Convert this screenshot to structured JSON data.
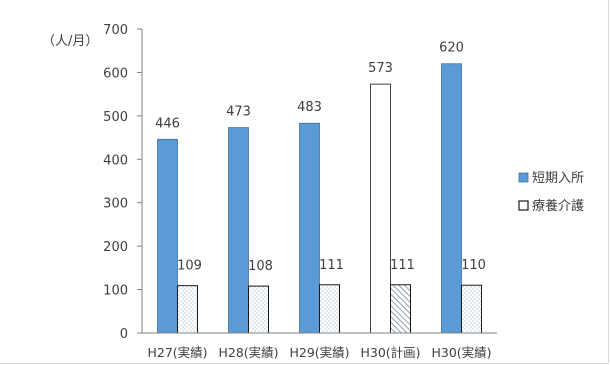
{
  "chart_data": {
    "type": "bar",
    "unit_label": "（人/月）",
    "categories": [
      "H27(実績)",
      "H28(実績)",
      "H29(実績)",
      "H30(計画)",
      "H30(実績)"
    ],
    "series": [
      {
        "name": "短期入所",
        "values": [
          446,
          473,
          483,
          573,
          620
        ]
      },
      {
        "name": "療養介護",
        "values": [
          109,
          108,
          111,
          111,
          110
        ]
      }
    ],
    "ylim": [
      0,
      700
    ],
    "yticks": [
      0,
      100,
      200,
      300,
      400,
      500,
      600,
      700
    ],
    "grid": false,
    "legend": "right",
    "colors": {
      "short_stay": "#5B9BD5",
      "short_stay_border": "#41719C",
      "plan_fill": "#ffffff",
      "care_border": "#1a1a1a",
      "axis": "#808080"
    }
  }
}
